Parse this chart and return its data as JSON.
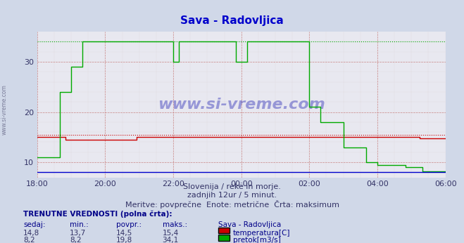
{
  "title": "Sava - Radovljica",
  "title_color": "#0000cc",
  "bg_color": "#d0d8e8",
  "plot_bg_color": "#e8e8f0",
  "grid_color_major": "#c0c0d0",
  "grid_color_minor": "#e0c0c0",
  "xlabel": "",
  "ylabel": "",
  "xlim": [
    0,
    144
  ],
  "ylim": [
    7,
    36
  ],
  "yticks": [
    10,
    20,
    30
  ],
  "xtick_labels": [
    "18:00",
    "20:00",
    "22:00",
    "00:00",
    "02:00",
    "04:00",
    "06:00"
  ],
  "xtick_positions": [
    0,
    24,
    48,
    72,
    96,
    120,
    144
  ],
  "temp_color": "#cc0000",
  "flow_color": "#00aa00",
  "height_color": "#0000cc",
  "temp_max": 15.4,
  "flow_max": 34.1,
  "temp_avg": 14.5,
  "flow_avg": 19.8,
  "watermark_text": "www.si-vreme.com",
  "subtitle1": "Slovenija / reke in morje.",
  "subtitle2": "zadnjih 12ur / 5 minut.",
  "subtitle3": "Meritve: povprečne  Enote: metrične  Črta: maksimum",
  "table_header": "TRENUTNE VREDNOSTI (polna črta):",
  "col_headers": [
    "sedaj:",
    "min.:",
    "povpr.:",
    "maks.:",
    "Sava - Radovljica"
  ],
  "temp_row": [
    "14,8",
    "13,7",
    "14,5",
    "15,4",
    "temperatura[C]"
  ],
  "flow_row": [
    "8,2",
    "8,2",
    "19,8",
    "34,1",
    "pretok[m3/s]"
  ]
}
